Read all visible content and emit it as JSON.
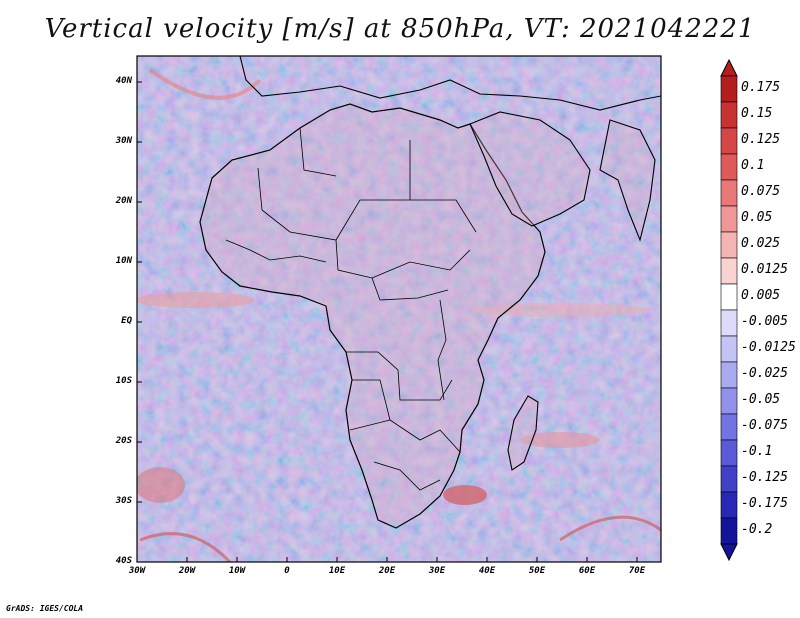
{
  "title": "Vertical velocity [m/s] at 850hPa, VT: 2021042221",
  "footer": "GrADS: IGES/COLA",
  "y_axis_labels": [
    "40N",
    "30N",
    "20N",
    "10N",
    "EQ",
    "10S",
    "20S",
    "30S",
    "40S"
  ],
  "x_axis_labels": [
    "30W",
    "20W",
    "10W",
    "0",
    "10E",
    "20E",
    "30E",
    "40E",
    "50E",
    "60E",
    "70E"
  ],
  "colorbar": {
    "labels": [
      "0.175",
      "0.15",
      "0.125",
      "0.1",
      "0.075",
      "0.05",
      "0.025",
      "0.0125",
      "0.005",
      "-0.005",
      "-0.0125",
      "-0.025",
      "-0.05",
      "-0.075",
      "-0.1",
      "-0.125",
      "-0.175",
      "-0.2"
    ],
    "colors": [
      "#b41e1e",
      "#c83232",
      "#d74646",
      "#e15a5a",
      "#eb7878",
      "#f09696",
      "#f5b4b4",
      "#fad2d2",
      "#ffffff",
      "#dcdcfa",
      "#c3c3f5",
      "#aaaaf0",
      "#9191eb",
      "#7373e1",
      "#5a5ad7",
      "#4141c8",
      "#2828b4",
      "#14149b"
    ]
  },
  "colors": {
    "ocean_base": "#c7c7ef",
    "warm": "#e88080",
    "cool": "#8c8ce6",
    "borders": "#000000"
  }
}
